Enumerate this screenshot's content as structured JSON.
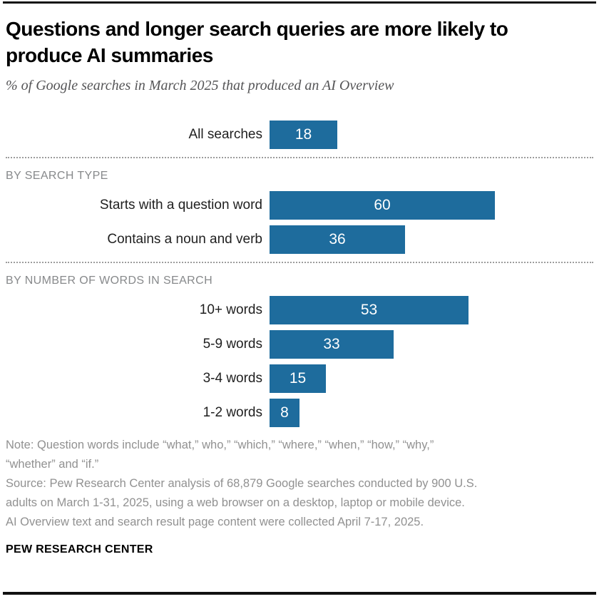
{
  "chart_data": {
    "type": "bar",
    "orientation": "horizontal",
    "title": "Questions and longer search queries are more likely to produce AI summaries",
    "subtitle": "% of Google searches in March 2025 that produced an AI Overview",
    "unit": "%",
    "xlim": [
      0,
      100
    ],
    "grid": false,
    "legend": "none",
    "bar_color": "#1e6c9d",
    "value_label_color": "#ffffff",
    "groups": [
      {
        "header": null,
        "rows": [
          {
            "label": "All searches",
            "value": 18
          }
        ]
      },
      {
        "header": "BY SEARCH TYPE",
        "rows": [
          {
            "label": "Starts with a question word",
            "value": 60
          },
          {
            "label": "Contains a noun and verb",
            "value": 36
          }
        ]
      },
      {
        "header": "BY NUMBER OF WORDS IN SEARCH",
        "rows": [
          {
            "label": "10+ words",
            "value": 53
          },
          {
            "label": "5-9 words",
            "value": 33
          },
          {
            "label": "3-4 words",
            "value": 15
          },
          {
            "label": "1-2 words",
            "value": 8
          }
        ]
      }
    ]
  },
  "footer": {
    "note_lines": [
      "Note: Question words include “what,” who,” “which,” “where,” “when,” “how,” “why,”",
      "“whether” and “if.”",
      "Source: Pew Research Center analysis of 68,879 Google searches conducted by 900 U.S.",
      "adults on March 1-31, 2025, using a web browser on a desktop, laptop or mobile device.",
      "AI Overview text and search result page content were collected April 7-17, 2025."
    ],
    "brand": "PEW RESEARCH CENTER"
  }
}
